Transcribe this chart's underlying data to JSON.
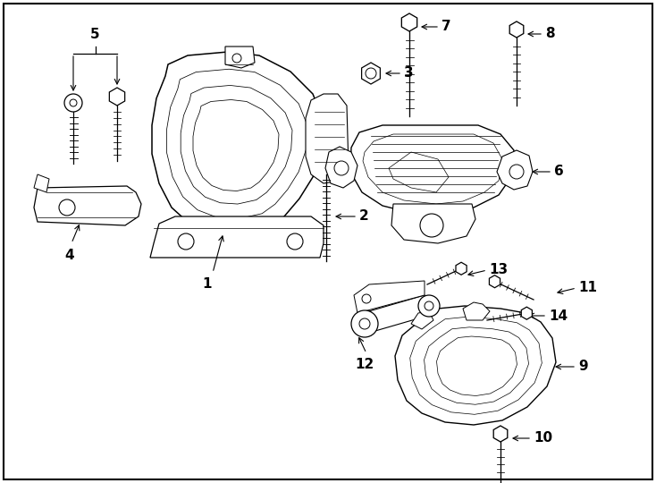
{
  "background_color": "#ffffff",
  "border_color": "#000000",
  "line_color": "#000000",
  "figure_width": 7.34,
  "figure_height": 5.4,
  "dpi": 100
}
